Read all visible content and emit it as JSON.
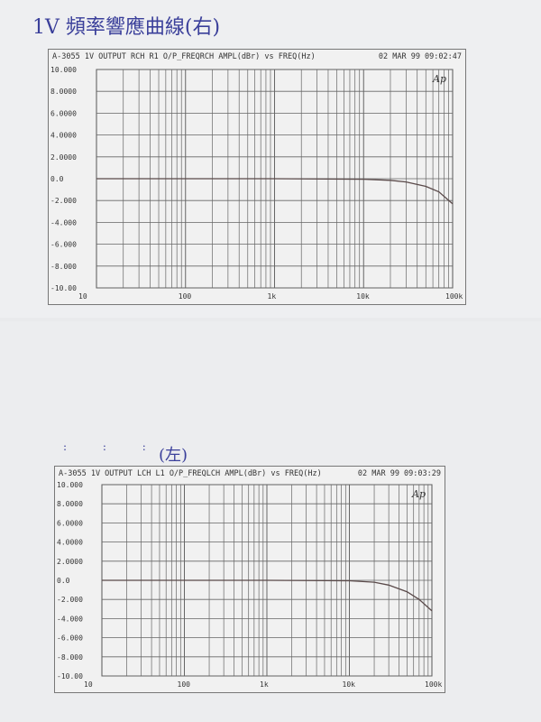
{
  "top_note": "1V 頻率響應曲線(右)",
  "bottom_note": "(左)",
  "bottom_dots": ": : :",
  "chart_data": [
    {
      "type": "line",
      "title": "A-3055 1V OUTPUT RCH R1 O/P_FREQRCH AMPL(dBr) vs FREQ(Hz)",
      "timestamp": "02 MAR 99 09:02:47",
      "logo": "Ap",
      "xlabel": "FREQ(Hz)",
      "ylabel": "AMPL(dBr)",
      "xscale": "log",
      "xlim": [
        10,
        100000
      ],
      "ylim": [
        -10,
        10
      ],
      "grid": true,
      "yticks": [
        "10.000",
        "8.0000",
        "6.0000",
        "4.0000",
        "2.0000",
        "0.0",
        "-2.000",
        "-4.000",
        "-6.000",
        "-8.000",
        "-10.00"
      ],
      "xticks": [
        "10",
        "100",
        "1k",
        "10k",
        "100k"
      ],
      "x": [
        10,
        20,
        50,
        100,
        1000,
        10000,
        20000,
        30000,
        50000,
        70000,
        100000
      ],
      "y": [
        0,
        0,
        0,
        0,
        0,
        -0.05,
        -0.15,
        -0.3,
        -0.7,
        -1.2,
        -2.3
      ]
    },
    {
      "type": "line",
      "title": "A-3055 1V OUTPUT LCH L1 O/P_FREQLCH AMPL(dBr) vs FREQ(Hz)",
      "timestamp": "02 MAR 99 09:03:29",
      "logo": "Ap",
      "xlabel": "FREQ(Hz)",
      "ylabel": "AMPL(dBr)",
      "xscale": "log",
      "xlim": [
        10,
        100000
      ],
      "ylim": [
        -10,
        10
      ],
      "grid": true,
      "yticks": [
        "10.000",
        "8.0000",
        "6.0000",
        "4.0000",
        "2.0000",
        "0.0",
        "-2.000",
        "-4.000",
        "-6.000",
        "-8.000",
        "-10.00"
      ],
      "xticks": [
        "10",
        "100",
        "1k",
        "10k",
        "100k"
      ],
      "x": [
        10,
        20,
        50,
        100,
        1000,
        10000,
        20000,
        30000,
        50000,
        70000,
        100000
      ],
      "y": [
        0,
        0,
        0,
        0,
        0,
        -0.05,
        -0.2,
        -0.5,
        -1.2,
        -2.0,
        -3.2
      ]
    }
  ]
}
